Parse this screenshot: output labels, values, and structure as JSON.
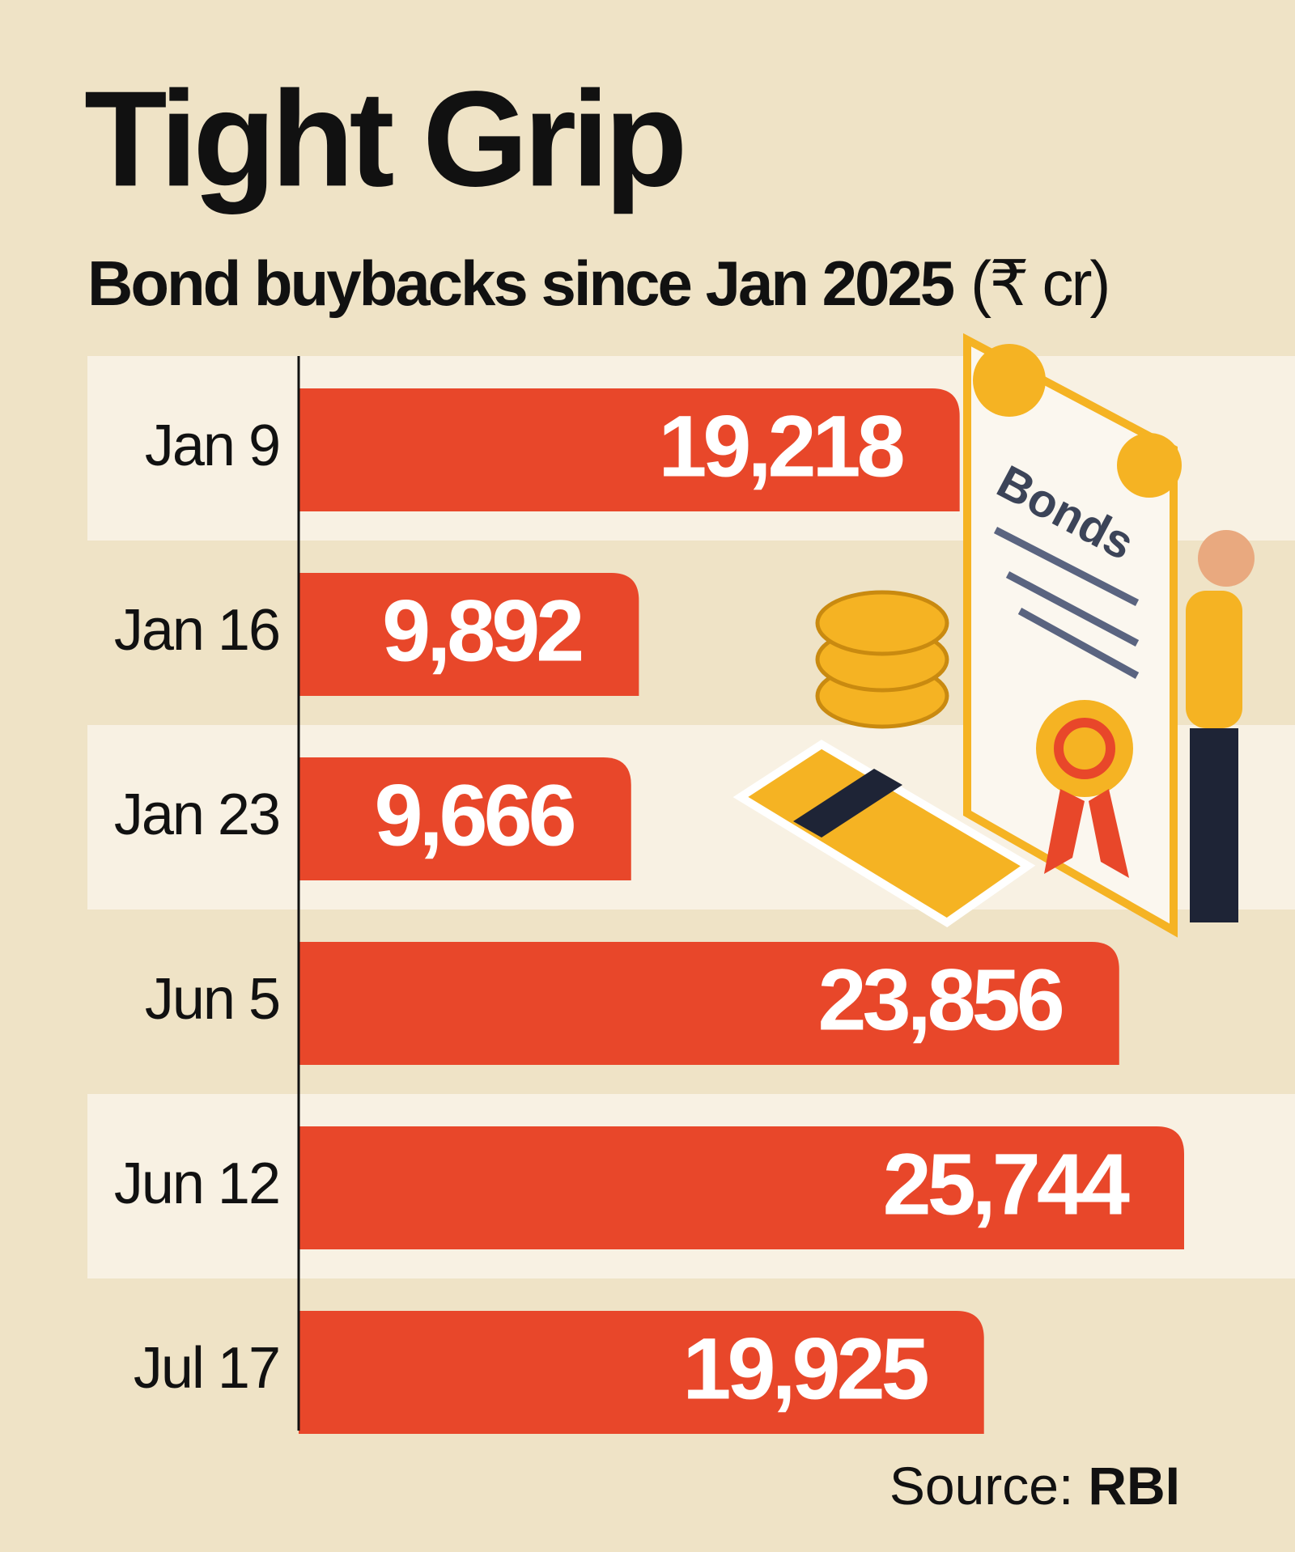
{
  "chart_data": {
    "type": "bar",
    "orientation": "horizontal",
    "title": "Tight Grip",
    "subtitle": "Bond buybacks since Jan 2025",
    "unit": "(₹ cr)",
    "categories": [
      "Jan 9",
      "Jan 16",
      "Jan 23",
      "Jun 5",
      "Jun 12",
      "Jul 17"
    ],
    "values": [
      19218,
      9892,
      9666,
      23856,
      25744,
      19925
    ],
    "value_labels": [
      "19,218",
      "9,892",
      "9,666",
      "23,856",
      "25,744",
      "19,925"
    ],
    "color": "#e8472a",
    "source_label": "Source:",
    "source": "RBI",
    "illustration_label": "Bonds"
  }
}
